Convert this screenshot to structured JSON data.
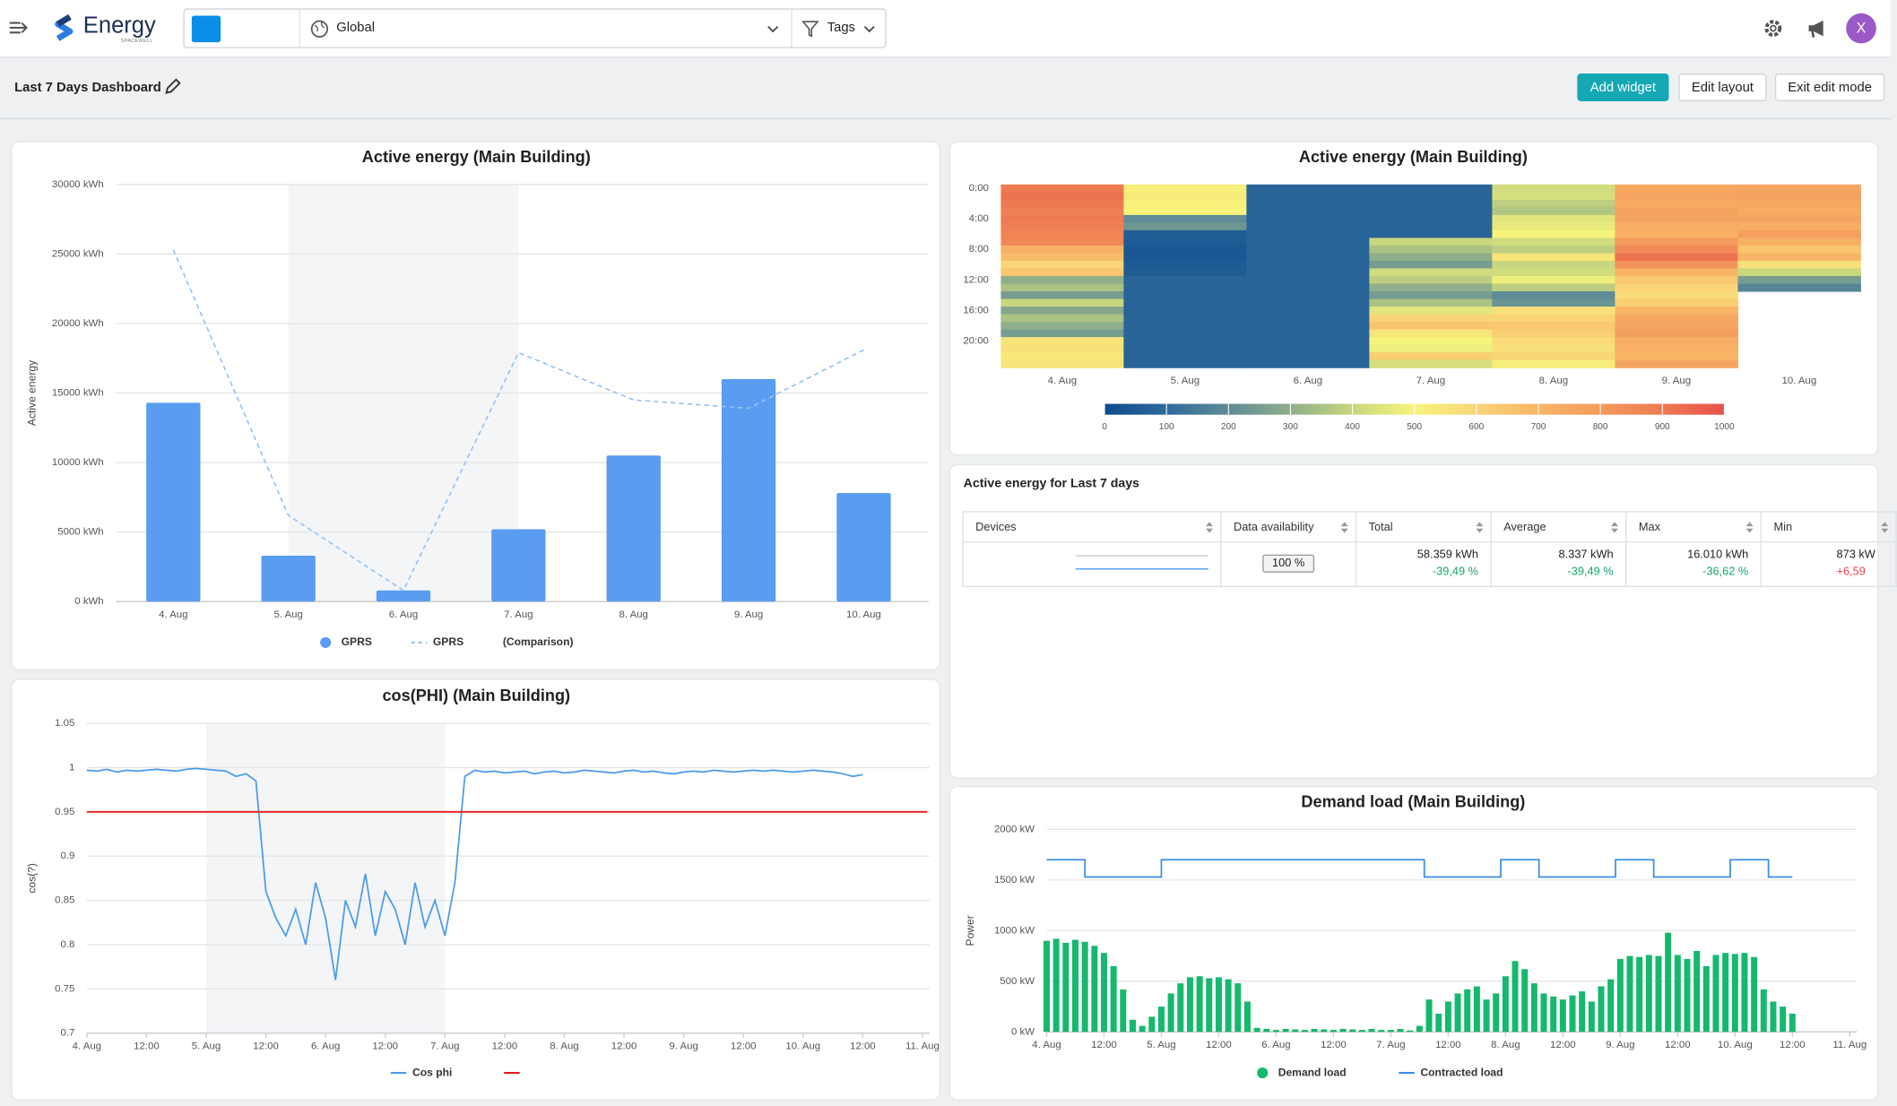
{
  "header": {
    "logo": "Energy",
    "logo_sub": "SPACEWELL",
    "scope": "Global",
    "filter": "Tags",
    "avatar": "X"
  },
  "toolbar": {
    "title": "Last 7 Days Dashboard",
    "buttons": [
      "Add widget",
      "Edit layout",
      "Exit edit mode"
    ]
  },
  "chart_data": [
    {
      "type": "bar",
      "title": "Active energy (Main Building)",
      "y_label": "Active energy",
      "categories": [
        "4. Aug",
        "5. Aug",
        "6. Aug",
        "7. Aug",
        "8. Aug",
        "9. Aug",
        "10. Aug"
      ],
      "series": [
        {
          "name": "GPRS",
          "type": "bar",
          "color": "#5a9cf0",
          "values": [
            14300,
            3300,
            800,
            5200,
            10500,
            16000,
            7800
          ]
        },
        {
          "name": "GPRS",
          "type": "line",
          "dash": true,
          "color": "#93c2f6",
          "values": [
            25300,
            6200,
            800,
            17900,
            14500,
            13900,
            18100
          ]
        }
      ],
      "comparison_label": "(Comparison)",
      "shaded_range": [
        1,
        3
      ],
      "ylim": [
        0,
        30000
      ],
      "yticks": [
        {
          "value": 0,
          "label": "0 kWh"
        },
        {
          "value": 5000,
          "label": "5000 kWh"
        },
        {
          "value": 10000,
          "label": "10000 kWh"
        },
        {
          "value": 15000,
          "label": "15000 kWh"
        },
        {
          "value": 20000,
          "label": "20000 kWh"
        },
        {
          "value": 25000,
          "label": "25000 kWh"
        },
        {
          "value": 30000,
          "label": "30000 kWh"
        }
      ],
      "grid": true
    },
    {
      "type": "heatmap",
      "title": "Active energy (Main Building)",
      "categories": [
        "4. Aug",
        "5. Aug",
        "6. Aug",
        "7. Aug",
        "8. Aug",
        "9. Aug",
        "10. Aug"
      ],
      "ylim": [
        0,
        24
      ],
      "yticks": [
        {
          "value": 0,
          "label": "0:00"
        },
        {
          "value": 4,
          "label": "4:00"
        },
        {
          "value": 8,
          "label": "8:00"
        },
        {
          "value": 12,
          "label": "12:00"
        },
        {
          "value": 16,
          "label": "16:00"
        },
        {
          "value": 20,
          "label": "20:00"
        }
      ],
      "values": [
        [
          900,
          920,
          900,
          880,
          900,
          880,
          870,
          860,
          720,
          680,
          600,
          650,
          300,
          350,
          250,
          400,
          280,
          350,
          300,
          250,
          550,
          560,
          540,
          550
        ],
        [
          520,
          530,
          510,
          500,
          200,
          230,
          60,
          50,
          40,
          40,
          50,
          60,
          80,
          80,
          80,
          80,
          80,
          80,
          80,
          80,
          80,
          80,
          80,
          80
        ],
        [
          80,
          80,
          80,
          80,
          80,
          80,
          80,
          80,
          80,
          80,
          80,
          80,
          80,
          80,
          80,
          80,
          80,
          80,
          80,
          80,
          80,
          80,
          80,
          80
        ],
        [
          80,
          80,
          80,
          80,
          80,
          80,
          80,
          400,
          350,
          300,
          250,
          420,
          380,
          300,
          250,
          350,
          450,
          600,
          650,
          550,
          500,
          480,
          620,
          430
        ],
        [
          420,
          430,
          380,
          360,
          450,
          470,
          500,
          420,
          380,
          550,
          400,
          420,
          480,
          380,
          200,
          220,
          560,
          600,
          640,
          620,
          580,
          560,
          600,
          520
        ],
        [
          750,
          760,
          740,
          770,
          760,
          730,
          720,
          800,
          850,
          920,
          820,
          700,
          640,
          600,
          580,
          620,
          700,
          750,
          760,
          780,
          730,
          720,
          700,
          760
        ],
        [
          760,
          770,
          750,
          740,
          760,
          730,
          780,
          720,
          650,
          700,
          560,
          400,
          250,
          180,
          null,
          null,
          null,
          null,
          null,
          null,
          null,
          null,
          null,
          null
        ]
      ],
      "zlim": [
        0,
        1000
      ],
      "zticks": [
        0,
        100,
        200,
        300,
        400,
        500,
        600,
        700,
        800,
        900,
        1000
      ],
      "colors": [
        "#0d4a8e",
        "#2f6a9a",
        "#5f8c96",
        "#8fae8a",
        "#c8d67e",
        "#f7f47c",
        "#f9d578",
        "#f8b566",
        "#f49a5c",
        "#ee7a52",
        "#e8504a"
      ]
    },
    {
      "type": "line",
      "title": "cos(PHI) (Main Building)",
      "y_label": "cos(?)",
      "x": [
        0,
        2,
        4,
        6,
        8,
        10,
        12,
        14,
        16,
        18,
        20,
        22,
        24,
        26,
        28,
        30,
        32,
        34,
        36,
        38,
        40,
        42,
        44,
        46,
        48,
        50,
        52,
        54,
        56,
        58,
        60,
        62,
        64,
        66,
        68,
        70,
        72,
        74,
        76,
        78,
        80,
        82,
        84,
        86,
        88,
        90,
        92,
        94,
        96,
        98,
        100,
        102,
        104,
        106,
        108,
        110,
        112,
        114,
        116,
        118,
        120,
        122,
        124,
        126,
        128,
        130,
        132,
        134,
        136,
        138,
        140,
        142,
        144,
        146,
        148,
        150,
        152,
        154,
        156
      ],
      "series": [
        {
          "name": "Cos phi",
          "type": "line",
          "color": "#4a9be8",
          "values": [
            0.997,
            0.996,
            0.998,
            0.995,
            0.997,
            0.996,
            0.997,
            0.998,
            0.997,
            0.996,
            0.998,
            0.999,
            0.998,
            0.997,
            0.996,
            0.99,
            0.993,
            0.985,
            0.86,
            0.83,
            0.81,
            0.84,
            0.8,
            0.87,
            0.83,
            0.76,
            0.85,
            0.82,
            0.88,
            0.81,
            0.86,
            0.84,
            0.8,
            0.87,
            0.82,
            0.85,
            0.81,
            0.87,
            0.99,
            0.997,
            0.995,
            0.996,
            0.994,
            0.995,
            0.996,
            0.993,
            0.995,
            0.996,
            0.994,
            0.995,
            0.997,
            0.996,
            0.995,
            0.994,
            0.996,
            0.997,
            0.995,
            0.996,
            0.994,
            0.993,
            0.995,
            0.996,
            0.995,
            0.997,
            0.996,
            0.995,
            0.996,
            0.997,
            0.996,
            0.997,
            0.996,
            0.995,
            0.996,
            0.997,
            0.996,
            0.995,
            0.993,
            0.99,
            0.992
          ]
        }
      ],
      "reference_line": {
        "value": 0.95,
        "color": "#e41a1c"
      },
      "shaded_range": [
        24,
        72
      ],
      "xlim": [
        0,
        168
      ],
      "xticks": [
        {
          "value": 0,
          "label": "4. Aug"
        },
        {
          "value": 12,
          "label": "12:00"
        },
        {
          "value": 24,
          "label": "5. Aug"
        },
        {
          "value": 36,
          "label": "12:00"
        },
        {
          "value": 48,
          "label": "6. Aug"
        },
        {
          "value": 60,
          "label": "12:00"
        },
        {
          "value": 72,
          "label": "7. Aug"
        },
        {
          "value": 84,
          "label": "12:00"
        },
        {
          "value": 96,
          "label": "8. Aug"
        },
        {
          "value": 108,
          "label": "12:00"
        },
        {
          "value": 120,
          "label": "9. Aug"
        },
        {
          "value": 132,
          "label": "12:00"
        },
        {
          "value": 144,
          "label": "10. Aug"
        },
        {
          "value": 156,
          "label": "12:00"
        },
        {
          "value": 168,
          "label": "11. Aug"
        }
      ],
      "ylim": [
        0.7,
        1.05
      ],
      "yticks": [
        0.7,
        0.75,
        0.8,
        0.85,
        0.9,
        0.95,
        1,
        1.05
      ],
      "grid": true
    },
    {
      "type": "combo",
      "title": "Demand load (Main Building)",
      "y_label": "Power",
      "x": [
        0,
        2,
        4,
        6,
        8,
        10,
        12,
        14,
        16,
        18,
        20,
        22,
        24,
        26,
        28,
        30,
        32,
        34,
        36,
        38,
        40,
        42,
        44,
        46,
        48,
        50,
        52,
        54,
        56,
        58,
        60,
        62,
        64,
        66,
        68,
        70,
        72,
        74,
        76,
        78,
        80,
        82,
        84,
        86,
        88,
        90,
        92,
        94,
        96,
        98,
        100,
        102,
        104,
        106,
        108,
        110,
        112,
        114,
        116,
        118,
        120,
        122,
        124,
        126,
        128,
        130,
        132,
        134,
        136,
        138,
        140,
        142,
        144,
        146,
        148,
        150,
        152,
        154,
        156
      ],
      "series": [
        {
          "name": "Demand load",
          "type": "bar",
          "color": "#16b86e",
          "values": [
            900,
            920,
            880,
            910,
            890,
            850,
            780,
            650,
            420,
            120,
            60,
            150,
            250,
            380,
            480,
            540,
            550,
            530,
            540,
            520,
            480,
            300,
            40,
            30,
            20,
            30,
            25,
            20,
            30,
            25,
            20,
            30,
            25,
            20,
            30,
            20,
            20,
            30,
            15,
            60,
            320,
            180,
            300,
            380,
            420,
            450,
            320,
            380,
            550,
            700,
            620,
            480,
            380,
            350,
            320,
            360,
            400,
            300,
            450,
            520,
            720,
            750,
            740,
            760,
            750,
            980,
            760,
            720,
            800,
            650,
            760,
            780,
            770,
            780,
            740,
            420,
            300,
            250,
            180
          ]
        },
        {
          "name": "Contracted load",
          "type": "line",
          "color": "#3b8fe6",
          "x": [
            0,
            8,
            8,
            24,
            24,
            79,
            79,
            95,
            95,
            103,
            103,
            119,
            119,
            127,
            127,
            143,
            143,
            151,
            151,
            156
          ],
          "values": [
            1700,
            1700,
            1530,
            1530,
            1700,
            1700,
            1530,
            1530,
            1700,
            1700,
            1530,
            1530,
            1700,
            1700,
            1530,
            1530,
            1700,
            1700,
            1530,
            1530
          ]
        }
      ],
      "xlim": [
        0,
        168
      ],
      "xticks": [
        {
          "value": 0,
          "label": "4. Aug"
        },
        {
          "value": 12,
          "label": "12:00"
        },
        {
          "value": 24,
          "label": "5. Aug"
        },
        {
          "value": 36,
          "label": "12:00"
        },
        {
          "value": 48,
          "label": "6. Aug"
        },
        {
          "value": 60,
          "label": "12:00"
        },
        {
          "value": 72,
          "label": "7. Aug"
        },
        {
          "value": 84,
          "label": "12:00"
        },
        {
          "value": 96,
          "label": "8. Aug"
        },
        {
          "value": 108,
          "label": "12:00"
        },
        {
          "value": 120,
          "label": "9. Aug"
        },
        {
          "value": 132,
          "label": "12:00"
        },
        {
          "value": 144,
          "label": "10. Aug"
        },
        {
          "value": 156,
          "label": "12:00"
        },
        {
          "value": 168,
          "label": "11. Aug"
        }
      ],
      "ylim": [
        0,
        2000
      ],
      "yticks": [
        {
          "value": 0,
          "label": "0 kW"
        },
        {
          "value": 500,
          "label": "500 kW"
        },
        {
          "value": 1000,
          "label": "1000 kW"
        },
        {
          "value": 1500,
          "label": "1500 kW"
        },
        {
          "value": 2000,
          "label": "2000 kW"
        }
      ],
      "grid": true
    }
  ],
  "table": {
    "title": "Active energy for Last 7 days",
    "columns": [
      "Devices",
      "Data availability",
      "Total",
      "Average",
      "Max",
      "Min"
    ],
    "row": {
      "availability": "100 %",
      "cells": [
        [
          "58.359 kWh",
          "-39,49 %"
        ],
        [
          "8.337 kWh",
          "-39,49 %"
        ],
        [
          "16.010 kWh",
          "-36,62 %"
        ],
        [
          "873 kW",
          "+6,59"
        ]
      ]
    }
  }
}
